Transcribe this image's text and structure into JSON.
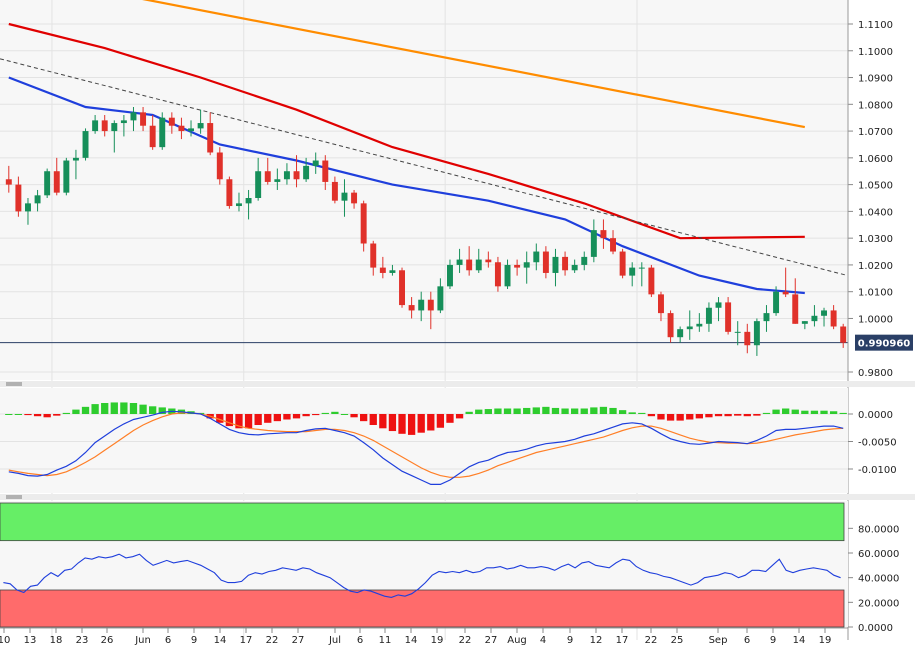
{
  "chart_data": [
    {
      "type": "candlestick",
      "panel": "price",
      "current_price_label": "0.990960",
      "y_ticks": [
        "1.1100",
        "1.1000",
        "1.0900",
        "1.0800",
        "1.0700",
        "1.0600",
        "1.0500",
        "1.0400",
        "1.0300",
        "1.0200",
        "1.0100",
        "1.0000",
        "0.9800"
      ],
      "ylim": [
        0.976,
        1.1155
      ],
      "current_price": 0.99096,
      "moving_averages": [
        {
          "color": "#ff8c00",
          "points": [
            [
              0,
              1.129
            ],
            [
              83,
              1.0715
            ]
          ]
        },
        {
          "color": "#e00000",
          "points": [
            [
              0,
              1.11
            ],
            [
              10,
              1.101
            ],
            [
              20,
              1.09
            ],
            [
              30,
              1.078
            ],
            [
              40,
              1.064
            ],
            [
              50,
              1.054
            ],
            [
              60,
              1.043
            ],
            [
              70,
              1.03
            ],
            [
              83,
              1.0305
            ]
          ]
        },
        {
          "color": "#1f3fdc",
          "points": [
            [
              0,
              1.09
            ],
            [
              8,
              1.079
            ],
            [
              15,
              1.076
            ],
            [
              22,
              1.065
            ],
            [
              30,
              1.059
            ],
            [
              40,
              1.05
            ],
            [
              50,
              1.044
            ],
            [
              58,
              1.037
            ],
            [
              64,
              1.027
            ],
            [
              72,
              1.016
            ],
            [
              78,
              1.011
            ],
            [
              83,
              1.0095
            ]
          ]
        }
      ],
      "trendline": {
        "color": "#444444",
        "points": [
          [
            0,
            1.097
          ],
          [
            83,
            1.016
          ]
        ]
      },
      "candles": [
        [
          1.052,
          1.057,
          1.047,
          1.05
        ],
        [
          1.05,
          1.053,
          1.038,
          1.04
        ],
        [
          1.04,
          1.045,
          1.035,
          1.043
        ],
        [
          1.043,
          1.048,
          1.04,
          1.046
        ],
        [
          1.046,
          1.056,
          1.045,
          1.055
        ],
        [
          1.055,
          1.06,
          1.046,
          1.047
        ],
        [
          1.047,
          1.06,
          1.046,
          1.059
        ],
        [
          1.059,
          1.063,
          1.052,
          1.06
        ],
        [
          1.06,
          1.071,
          1.059,
          1.07
        ],
        [
          1.07,
          1.076,
          1.069,
          1.074
        ],
        [
          1.074,
          1.076,
          1.068,
          1.07
        ],
        [
          1.07,
          1.074,
          1.062,
          1.073
        ],
        [
          1.073,
          1.076,
          1.068,
          1.074
        ],
        [
          1.074,
          1.079,
          1.07,
          1.077
        ],
        [
          1.077,
          1.079,
          1.07,
          1.072
        ],
        [
          1.072,
          1.076,
          1.063,
          1.064
        ],
        [
          1.064,
          1.077,
          1.063,
          1.075
        ],
        [
          1.075,
          1.077,
          1.069,
          1.072
        ],
        [
          1.072,
          1.075,
          1.067,
          1.07
        ],
        [
          1.07,
          1.074,
          1.068,
          1.071
        ],
        [
          1.071,
          1.078,
          1.069,
          1.073
        ],
        [
          1.073,
          1.077,
          1.061,
          1.062
        ],
        [
          1.062,
          1.064,
          1.05,
          1.052
        ],
        [
          1.052,
          1.053,
          1.041,
          1.042
        ],
        [
          1.042,
          1.047,
          1.04,
          1.043
        ],
        [
          1.043,
          1.048,
          1.037,
          1.045
        ],
        [
          1.045,
          1.06,
          1.044,
          1.055
        ],
        [
          1.055,
          1.06,
          1.05,
          1.051
        ],
        [
          1.051,
          1.056,
          1.048,
          1.052
        ],
        [
          1.052,
          1.058,
          1.05,
          1.055
        ],
        [
          1.055,
          1.061,
          1.049,
          1.052
        ],
        [
          1.052,
          1.06,
          1.051,
          1.057
        ],
        [
          1.057,
          1.062,
          1.054,
          1.059
        ],
        [
          1.059,
          1.061,
          1.048,
          1.051
        ],
        [
          1.051,
          1.053,
          1.043,
          1.044
        ],
        [
          1.044,
          1.052,
          1.038,
          1.047
        ],
        [
          1.047,
          1.048,
          1.041,
          1.043
        ],
        [
          1.043,
          1.044,
          1.025,
          1.028
        ],
        [
          1.028,
          1.029,
          1.016,
          1.019
        ],
        [
          1.019,
          1.023,
          1.015,
          1.017
        ],
        [
          1.017,
          1.02,
          1.016,
          1.018
        ],
        [
          1.018,
          1.019,
          1.004,
          1.005
        ],
        [
          1.005,
          1.008,
          1.0,
          1.003
        ],
        [
          1.003,
          1.01,
          0.999,
          1.007
        ],
        [
          1.007,
          1.01,
          0.996,
          1.003
        ],
        [
          1.003,
          1.015,
          1.002,
          1.012
        ],
        [
          1.012,
          1.022,
          1.011,
          1.02
        ],
        [
          1.02,
          1.026,
          1.017,
          1.022
        ],
        [
          1.022,
          1.027,
          1.016,
          1.018
        ],
        [
          1.018,
          1.026,
          1.017,
          1.022
        ],
        [
          1.022,
          1.025,
          1.019,
          1.021
        ],
        [
          1.021,
          1.023,
          1.01,
          1.012
        ],
        [
          1.012,
          1.022,
          1.011,
          1.02
        ],
        [
          1.02,
          1.022,
          1.016,
          1.019
        ],
        [
          1.019,
          1.025,
          1.013,
          1.021
        ],
        [
          1.021,
          1.028,
          1.018,
          1.025
        ],
        [
          1.025,
          1.027,
          1.015,
          1.017
        ],
        [
          1.017,
          1.026,
          1.012,
          1.023
        ],
        [
          1.023,
          1.025,
          1.016,
          1.018
        ],
        [
          1.018,
          1.022,
          1.017,
          1.02
        ],
        [
          1.02,
          1.025,
          1.018,
          1.023
        ],
        [
          1.023,
          1.037,
          1.021,
          1.033
        ],
        [
          1.033,
          1.037,
          1.026,
          1.03
        ],
        [
          1.03,
          1.033,
          1.024,
          1.025
        ],
        [
          1.025,
          1.026,
          1.015,
          1.016
        ],
        [
          1.016,
          1.021,
          1.012,
          1.019
        ],
        [
          1.019,
          1.021,
          1.012,
          1.019
        ],
        [
          1.019,
          1.02,
          1.008,
          1.009
        ],
        [
          1.009,
          1.01,
          0.999,
          1.002
        ],
        [
          1.002,
          1.003,
          0.991,
          0.993
        ],
        [
          0.993,
          0.997,
          0.991,
          0.996
        ],
        [
          0.996,
          1.003,
          0.992,
          0.997
        ],
        [
          0.997,
          1.002,
          0.995,
          0.998
        ],
        [
          0.998,
          1.006,
          0.995,
          1.004
        ],
        [
          1.004,
          1.008,
          0.999,
          1.006
        ],
        [
          1.006,
          1.008,
          0.994,
          0.995
        ],
        [
          0.995,
          0.999,
          0.99,
          0.995
        ],
        [
          0.995,
          0.998,
          0.987,
          0.99
        ],
        [
          0.99,
          1.0,
          0.986,
          0.999
        ],
        [
          0.999,
          1.005,
          0.995,
          1.002
        ],
        [
          1.002,
          1.012,
          1.001,
          1.01
        ],
        [
          1.01,
          1.019,
          1.008,
          1.009
        ],
        [
          1.009,
          1.015,
          0.998,
          0.998
        ],
        [
          0.998,
          0.999,
          0.996,
          0.999
        ],
        [
          0.999,
          1.005,
          0.997,
          1.001
        ],
        [
          1.001,
          1.004,
          0.997,
          1.003
        ],
        [
          1.003,
          1.005,
          0.996,
          0.997
        ],
        [
          0.997,
          0.998,
          0.989,
          0.99096
        ]
      ]
    },
    {
      "type": "macd",
      "panel": "macd",
      "y_ticks": [
        "0.0000",
        "-0.0050",
        "-0.0100"
      ],
      "ylim": [
        -0.014,
        0.004
      ],
      "histogram": [
        0,
        0,
        -0.0002,
        -0.0004,
        -0.0006,
        -0.0003,
        0.0002,
        0.0008,
        0.0013,
        0.0018,
        0.002,
        0.0021,
        0.0021,
        0.002,
        0.0017,
        0.0014,
        0.0012,
        0.001,
        0.0008,
        0.0005,
        0.0002,
        -0.0008,
        -0.0016,
        -0.0022,
        -0.0026,
        -0.0026,
        -0.002,
        -0.0016,
        -0.0013,
        -0.001,
        -0.0008,
        -0.0004,
        -0.0002,
        0.0002,
        0.0004,
        0.0,
        -0.0006,
        -0.0013,
        -0.002,
        -0.0026,
        -0.0031,
        -0.0036,
        -0.0038,
        -0.0034,
        -0.003,
        -0.0025,
        -0.0016,
        -0.0008,
        0.0004,
        0.0008,
        0.0009,
        0.001,
        0.001,
        0.001,
        0.0011,
        0.0012,
        0.0013,
        0.0011,
        0.001,
        0.001,
        0.001,
        0.0012,
        0.0013,
        0.0011,
        0.0007,
        0.0003,
        0.0002,
        -0.0004,
        -0.001,
        -0.0012,
        -0.0012,
        -0.001,
        -0.0008,
        -0.0006,
        -0.0004,
        -0.0004,
        -0.0003,
        -0.0004,
        -0.0003,
        0.0002,
        0.0008,
        0.001,
        0.0008,
        0.0006,
        0.0006,
        0.0006,
        0.0005,
        0.0002
      ],
      "macd_line": [
        -0.0105,
        -0.0108,
        -0.0112,
        -0.0113,
        -0.011,
        -0.0102,
        -0.0095,
        -0.0085,
        -0.007,
        -0.0052,
        -0.004,
        -0.0028,
        -0.0018,
        -0.001,
        -0.0006,
        -0.0002,
        0.0003,
        0.0005,
        0.0004,
        0.0002,
        0.0,
        -0.0008,
        -0.0018,
        -0.0028,
        -0.0034,
        -0.0037,
        -0.0038,
        -0.0036,
        -0.0035,
        -0.0034,
        -0.0034,
        -0.003,
        -0.0027,
        -0.0026,
        -0.003,
        -0.0034,
        -0.004,
        -0.0052,
        -0.0065,
        -0.008,
        -0.0092,
        -0.0104,
        -0.0112,
        -0.012,
        -0.0128,
        -0.0128,
        -0.012,
        -0.0108,
        -0.0096,
        -0.0088,
        -0.0084,
        -0.0076,
        -0.007,
        -0.0068,
        -0.0064,
        -0.0058,
        -0.0054,
        -0.0052,
        -0.005,
        -0.0046,
        -0.004,
        -0.0036,
        -0.003,
        -0.0024,
        -0.0018,
        -0.0016,
        -0.0018,
        -0.0026,
        -0.0036,
        -0.0045,
        -0.005,
        -0.0054,
        -0.0055,
        -0.0053,
        -0.005,
        -0.0051,
        -0.0052,
        -0.0054,
        -0.0048,
        -0.004,
        -0.003,
        -0.0028,
        -0.0028,
        -0.0026,
        -0.0024,
        -0.0022,
        -0.0022,
        -0.0026
      ],
      "signal_line": [
        -0.0102,
        -0.0105,
        -0.0108,
        -0.011,
        -0.0112,
        -0.011,
        -0.0105,
        -0.0097,
        -0.0088,
        -0.0078,
        -0.0066,
        -0.0054,
        -0.0042,
        -0.003,
        -0.002,
        -0.0012,
        -0.0005,
        0.0,
        0.0002,
        0.0002,
        0.0,
        -0.0004,
        -0.001,
        -0.0016,
        -0.0022,
        -0.0026,
        -0.0028,
        -0.003,
        -0.0031,
        -0.0032,
        -0.0032,
        -0.0032,
        -0.003,
        -0.0028,
        -0.0028,
        -0.003,
        -0.0034,
        -0.004,
        -0.0048,
        -0.0058,
        -0.0068,
        -0.0078,
        -0.0088,
        -0.0098,
        -0.0106,
        -0.0112,
        -0.0115,
        -0.0115,
        -0.0113,
        -0.0108,
        -0.0102,
        -0.0094,
        -0.0088,
        -0.0082,
        -0.0076,
        -0.007,
        -0.0066,
        -0.0062,
        -0.0058,
        -0.0054,
        -0.005,
        -0.0046,
        -0.0042,
        -0.0036,
        -0.003,
        -0.0025,
        -0.0022,
        -0.0022,
        -0.0026,
        -0.0032,
        -0.0038,
        -0.0044,
        -0.0048,
        -0.0051,
        -0.0052,
        -0.0053,
        -0.0053,
        -0.0054,
        -0.0053,
        -0.005,
        -0.0046,
        -0.0042,
        -0.0038,
        -0.0035,
        -0.0032,
        -0.0029,
        -0.0027,
        -0.0026
      ]
    },
    {
      "type": "rsi",
      "panel": "rsi",
      "y_ticks": [
        "80.0000",
        "60.0000",
        "40.0000",
        "20.0000",
        "0.0000"
      ],
      "ylim": [
        0,
        100
      ],
      "overbought": 70,
      "oversold": 30,
      "values": [
        36,
        35,
        30,
        28,
        33,
        34,
        40,
        44,
        41,
        46,
        47,
        52,
        56,
        55,
        57,
        56,
        57,
        59,
        56,
        57,
        59,
        54,
        50,
        52,
        54,
        52,
        53,
        54,
        52,
        50,
        47,
        44,
        38,
        36,
        36,
        37,
        42,
        44,
        43,
        45,
        46,
        48,
        47,
        46,
        48,
        47,
        44,
        42,
        40,
        36,
        32,
        29,
        28,
        30,
        29,
        27,
        25,
        24,
        26,
        25,
        27,
        31,
        36,
        42,
        45,
        44,
        45,
        44,
        46,
        44,
        45,
        48,
        48,
        49,
        47,
        48,
        50,
        48,
        48,
        49,
        48,
        46,
        49,
        51,
        48,
        52,
        53,
        50,
        49,
        48,
        52,
        55,
        54,
        49,
        46,
        44,
        43,
        41,
        40,
        38,
        36,
        34,
        36,
        40,
        41,
        42,
        44,
        43,
        40,
        42,
        46,
        46,
        45,
        50,
        55,
        46,
        44,
        46,
        47,
        48,
        47,
        46,
        42,
        40
      ]
    },
    {
      "type": "x-axis",
      "tick_labels": [
        "10",
        "13",
        "18",
        "23",
        "26",
        "Jun",
        "6",
        "9",
        "14",
        "17",
        "22",
        "27",
        "Jul",
        "6",
        "11",
        "14",
        "19",
        "22",
        "27",
        "Aug",
        "4",
        "9",
        "12",
        "17",
        "22",
        "25",
        "Sep",
        "6",
        "9",
        "14",
        "19"
      ]
    }
  ],
  "colors": {
    "bull": "#168f5a",
    "bear": "#e0312a",
    "macd_hist_pos": "#2ecc2e",
    "macd_hist_neg": "#ee1111",
    "macd_line": "#1f3fdc",
    "signal_line": "#ff7f27",
    "rsi_line": "#1f3fdc",
    "overbought_fill": "#66ee66",
    "oversold_fill": "#ff6b6b",
    "price_label_bg": "#2a3f66"
  }
}
